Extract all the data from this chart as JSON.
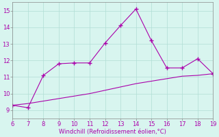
{
  "xlabel": "Windchill (Refroidissement éolien,°C)",
  "xlim": [
    6,
    19
  ],
  "ylim": [
    8.5,
    15.5
  ],
  "xticks": [
    6,
    7,
    8,
    9,
    10,
    11,
    12,
    13,
    14,
    15,
    16,
    17,
    18,
    19
  ],
  "yticks": [
    9,
    10,
    11,
    12,
    13,
    14,
    15
  ],
  "bg_color": "#d8f5ef",
  "line_color": "#aa00aa",
  "line1_x": [
    6,
    7,
    8,
    9,
    10,
    11,
    12,
    13,
    14,
    15,
    16,
    17,
    18,
    19
  ],
  "line1_y": [
    9.3,
    9.15,
    11.1,
    11.8,
    11.85,
    11.85,
    13.05,
    14.1,
    15.1,
    13.2,
    11.55,
    11.55,
    12.1,
    11.2
  ],
  "line2_x": [
    6,
    7,
    8,
    9,
    10,
    11,
    12,
    13,
    14,
    15,
    16,
    17,
    18,
    19
  ],
  "line2_y": [
    9.3,
    9.4,
    9.55,
    9.7,
    9.85,
    10.0,
    10.2,
    10.4,
    10.6,
    10.75,
    10.9,
    11.05,
    11.1,
    11.2
  ],
  "marker": "+",
  "markersize": 4,
  "linewidth": 0.8,
  "tick_fontsize": 6,
  "xlabel_fontsize": 6
}
